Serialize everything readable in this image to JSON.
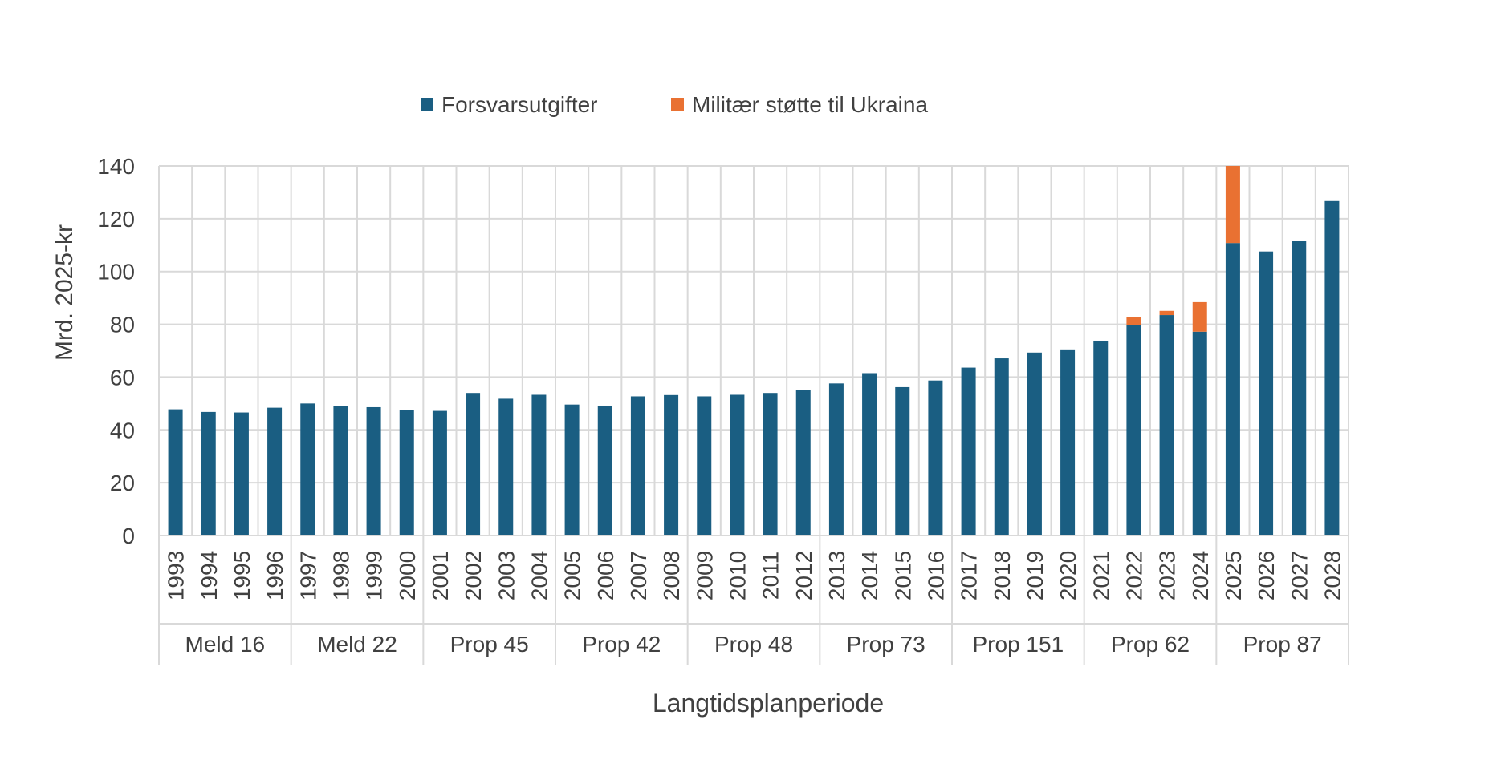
{
  "chart_data": {
    "type": "bar",
    "stacked": true,
    "title": "",
    "ylabel": "Mrd. 2025-kr",
    "xlabel": "Langtidsplanperiode",
    "ylim": [
      0,
      140
    ],
    "yticks": [
      0,
      20,
      40,
      60,
      80,
      100,
      120,
      140
    ],
    "grid": true,
    "legend_position": "top",
    "categories": [
      "1993",
      "1994",
      "1995",
      "1996",
      "1997",
      "1998",
      "1999",
      "2000",
      "2001",
      "2002",
      "2003",
      "2004",
      "2005",
      "2006",
      "2007",
      "2008",
      "2009",
      "2010",
      "2011",
      "2012",
      "2013",
      "2014",
      "2015",
      "2016",
      "2017",
      "2018",
      "2019",
      "2020",
      "2021",
      "2022",
      "2023",
      "2024",
      "2025",
      "2026",
      "2027",
      "2028"
    ],
    "groups": [
      {
        "label": "Meld 16",
        "count": 4
      },
      {
        "label": "Meld 22",
        "count": 4
      },
      {
        "label": "Prop 45",
        "count": 4
      },
      {
        "label": "Prop 42",
        "count": 4
      },
      {
        "label": "Prop 48",
        "count": 4
      },
      {
        "label": "Prop 73",
        "count": 4
      },
      {
        "label": "Prop 151",
        "count": 4
      },
      {
        "label": "Prop 62",
        "count": 4
      },
      {
        "label": "Prop 87",
        "count": 4
      }
    ],
    "series": [
      {
        "name": "Forsvarsutgifter",
        "color": "#1a5e82",
        "values": [
          47.8,
          46.8,
          46.6,
          48.4,
          50.0,
          49.0,
          48.6,
          47.4,
          47.2,
          54.0,
          51.8,
          53.3,
          49.6,
          49.2,
          52.7,
          53.2,
          52.7,
          53.3,
          54.0,
          55.0,
          57.6,
          61.5,
          56.2,
          58.7,
          63.6,
          67.1,
          69.3,
          70.5,
          73.8,
          79.7,
          83.5,
          77.2,
          110.8,
          107.6,
          111.7,
          126.7
        ]
      },
      {
        "name": "Militær støtte til Ukraina",
        "color": "#e97132",
        "values": [
          0,
          0,
          0,
          0,
          0,
          0,
          0,
          0,
          0,
          0,
          0,
          0,
          0,
          0,
          0,
          0,
          0,
          0,
          0,
          0,
          0,
          0,
          0,
          0,
          0,
          0,
          0,
          0,
          0,
          3.2,
          1.6,
          11.2,
          29.2,
          0,
          0,
          0
        ]
      }
    ]
  }
}
